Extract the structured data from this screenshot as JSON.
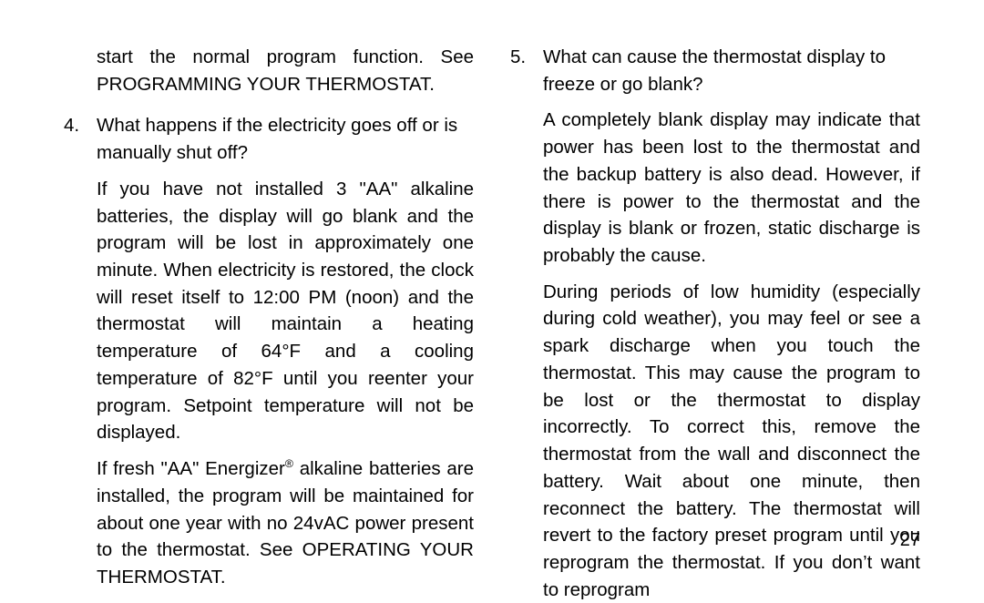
{
  "left": {
    "continuation": "start the normal program function.  See PROGRAMMING YOUR THERMOSTAT.",
    "q4_num": "4.",
    "q4_q": "What happens if the electricity goes off or is manually shut off?",
    "q4_p1": "If you have not installed 3 \"AA\" alkaline batteries, the display will go blank and the program will be lost in approximately one minute.  When electricity is restored, the clock will reset itself to 12:00 PM (noon) and the thermostat will maintain a heating temperature of 64°F and a cooling temperature of 82°F until you reenter your program. Setpoint temperature will not be displayed.",
    "q4_p2_pre": "If fresh \"AA\" Energizer",
    "q4_p2_post": " alkaline batteries are installed, the program will be maintained for about one year with no 24vAC power present to the thermostat.  See OPERATING YOUR THERMOSTAT."
  },
  "right": {
    "q5_num": "5.",
    "q5_q": "What can cause the thermostat display to freeze or go blank?",
    "q5_p1": "A completely blank display may indicate that power has been lost to the thermostat and the backup battery is also dead.  However, if there is power to the thermostat and the display is blank or frozen, static discharge is probably the cause.",
    "q5_p2": "During periods of low humidity (especially during cold weather), you may feel or see a spark discharge when you touch the thermostat.  This may cause the program to be lost or the thermostat to display incorrectly. To correct this, remove the thermostat from the wall and disconnect the battery.  Wait about one minute, then reconnect the battery.  The thermostat will revert to the factory preset program until you reprogram the thermostat.  If you don’t want to reprogram"
  },
  "pagenum": "27"
}
